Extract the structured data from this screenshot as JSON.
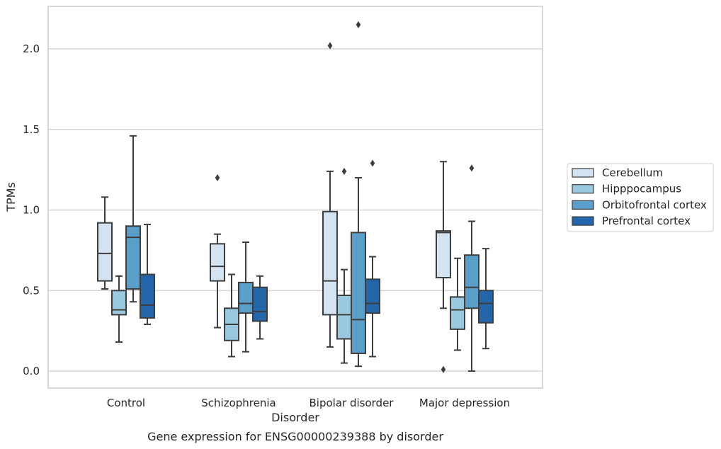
{
  "chart_data": {
    "type": "boxplot",
    "title": "Gene expression for ENSG00000239388 by disorder",
    "xlabel": "Disorder",
    "ylabel": "TPMs",
    "ylim": [
      -0.1,
      2.27
    ],
    "yticks": [
      0.0,
      0.5,
      1.0,
      1.5,
      2.0
    ],
    "ytick_labels": [
      "0.0",
      "0.5",
      "1.0",
      "1.5",
      "2.0"
    ],
    "grid": "horizontal",
    "legend_position": "right",
    "categories": [
      "Control",
      "Schizophrenia",
      "Bipolar disorder",
      "Major depression"
    ],
    "series": [
      {
        "name": "Cerebellum",
        "color": "#d3e3f2",
        "boxes": [
          {
            "whislo": 0.51,
            "q1": 0.56,
            "med": 0.73,
            "q3": 0.92,
            "whishi": 1.08,
            "fliers": []
          },
          {
            "whislo": 0.27,
            "q1": 0.56,
            "med": 0.65,
            "q3": 0.79,
            "whishi": 0.85,
            "fliers": [
              1.2
            ]
          },
          {
            "whislo": 0.15,
            "q1": 0.35,
            "med": 0.56,
            "q3": 0.99,
            "whishi": 1.24,
            "fliers": [
              2.02
            ]
          },
          {
            "whislo": 0.39,
            "q1": 0.58,
            "med": 0.86,
            "q3": 0.87,
            "whishi": 1.3,
            "fliers": [
              0.01
            ]
          }
        ]
      },
      {
        "name": "Hipppocampus",
        "color": "#9ac8e0",
        "boxes": [
          {
            "whislo": 0.18,
            "q1": 0.35,
            "med": 0.38,
            "q3": 0.5,
            "whishi": 0.59,
            "fliers": []
          },
          {
            "whislo": 0.09,
            "q1": 0.19,
            "med": 0.29,
            "q3": 0.39,
            "whishi": 0.6,
            "fliers": []
          },
          {
            "whislo": 0.05,
            "q1": 0.2,
            "med": 0.35,
            "q3": 0.47,
            "whishi": 0.63,
            "fliers": [
              1.24
            ]
          },
          {
            "whislo": 0.13,
            "q1": 0.26,
            "med": 0.38,
            "q3": 0.46,
            "whishi": 0.7,
            "fliers": []
          }
        ]
      },
      {
        "name": "Orbitofrontal cortex",
        "color": "#5a9ec9",
        "boxes": [
          {
            "whislo": 0.43,
            "q1": 0.51,
            "med": 0.83,
            "q3": 0.9,
            "whishi": 1.46,
            "fliers": []
          },
          {
            "whislo": 0.12,
            "q1": 0.36,
            "med": 0.42,
            "q3": 0.55,
            "whishi": 0.8,
            "fliers": []
          },
          {
            "whislo": 0.03,
            "q1": 0.11,
            "med": 0.32,
            "q3": 0.86,
            "whishi": 1.2,
            "fliers": [
              2.15
            ]
          },
          {
            "whislo": 0.0,
            "q1": 0.39,
            "med": 0.52,
            "q3": 0.72,
            "whishi": 0.93,
            "fliers": [
              1.26
            ]
          }
        ]
      },
      {
        "name": "Prefrontal cortex",
        "color": "#2565a9",
        "boxes": [
          {
            "whislo": 0.29,
            "q1": 0.33,
            "med": 0.41,
            "q3": 0.6,
            "whishi": 0.91,
            "fliers": []
          },
          {
            "whislo": 0.2,
            "q1": 0.31,
            "med": 0.37,
            "q3": 0.52,
            "whishi": 0.59,
            "fliers": []
          },
          {
            "whislo": 0.09,
            "q1": 0.36,
            "med": 0.42,
            "q3": 0.57,
            "whishi": 0.71,
            "fliers": [
              1.29
            ]
          },
          {
            "whislo": 0.14,
            "q1": 0.3,
            "med": 0.42,
            "q3": 0.5,
            "whishi": 0.76,
            "fliers": []
          }
        ]
      }
    ]
  }
}
